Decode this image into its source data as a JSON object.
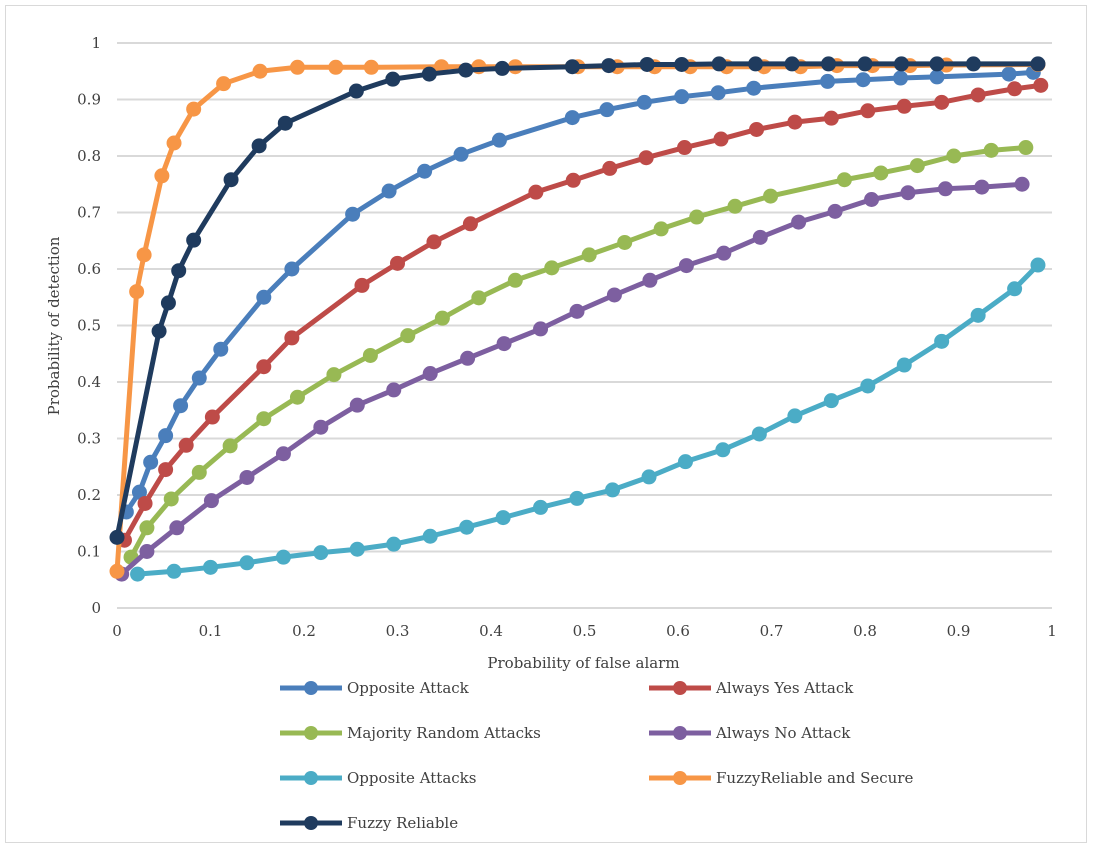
{
  "chart_data": {
    "type": "line",
    "title": "",
    "xlabel": "Probability of false alarm",
    "ylabel": "Probability of detection",
    "xlim": [
      0,
      1
    ],
    "ylim": [
      0,
      1
    ],
    "xticks": [
      0,
      0.1,
      0.2,
      0.3,
      0.4,
      0.5,
      0.6,
      0.7,
      0.8,
      0.9,
      1
    ],
    "xtick_labels": [
      "0",
      "0.1",
      "0.2",
      "0.3",
      "0.4",
      "0.5",
      "0.6",
      "0.7",
      "0.8",
      "0.9",
      "1"
    ],
    "yticks": [
      0,
      0.1,
      0.2,
      0.3,
      0.4,
      0.5,
      0.6,
      0.7,
      0.8,
      0.9,
      1
    ],
    "ytick_labels": [
      "0",
      "0.1",
      "0.2",
      "0.3",
      "0.4",
      "0.5",
      "0.6",
      "0.7",
      "0.8",
      "0.9",
      "1"
    ],
    "grid": "horizontal",
    "legend_position": "bottom",
    "series": [
      {
        "name": "Opposite Attack",
        "color": "#4a7ebb",
        "points": [
          [
            0.01,
            0.17
          ],
          [
            0.024,
            0.205
          ],
          [
            0.036,
            0.258
          ],
          [
            0.052,
            0.305
          ],
          [
            0.068,
            0.358
          ],
          [
            0.088,
            0.407
          ],
          [
            0.111,
            0.458
          ],
          [
            0.157,
            0.55
          ],
          [
            0.187,
            0.6
          ],
          [
            0.252,
            0.697
          ],
          [
            0.291,
            0.738
          ],
          [
            0.329,
            0.773
          ],
          [
            0.368,
            0.803
          ],
          [
            0.409,
            0.828
          ],
          [
            0.487,
            0.868
          ],
          [
            0.524,
            0.882
          ],
          [
            0.564,
            0.895
          ],
          [
            0.604,
            0.905
          ],
          [
            0.643,
            0.912
          ],
          [
            0.681,
            0.92
          ],
          [
            0.76,
            0.932
          ],
          [
            0.798,
            0.935
          ],
          [
            0.838,
            0.938
          ],
          [
            0.877,
            0.94
          ],
          [
            0.954,
            0.945
          ],
          [
            0.98,
            0.948
          ]
        ]
      },
      {
        "name": "Always Yes Attack",
        "color": "#be4b48",
        "points": [
          [
            0.008,
            0.12
          ],
          [
            0.03,
            0.185
          ],
          [
            0.052,
            0.245
          ],
          [
            0.074,
            0.288
          ],
          [
            0.102,
            0.338
          ],
          [
            0.157,
            0.427
          ],
          [
            0.187,
            0.478
          ],
          [
            0.262,
            0.571
          ],
          [
            0.3,
            0.61
          ],
          [
            0.339,
            0.648
          ],
          [
            0.378,
            0.68
          ],
          [
            0.448,
            0.736
          ],
          [
            0.488,
            0.757
          ],
          [
            0.527,
            0.778
          ],
          [
            0.566,
            0.797
          ],
          [
            0.607,
            0.815
          ],
          [
            0.646,
            0.83
          ],
          [
            0.684,
            0.847
          ],
          [
            0.725,
            0.86
          ],
          [
            0.764,
            0.867
          ],
          [
            0.803,
            0.88
          ],
          [
            0.842,
            0.888
          ],
          [
            0.882,
            0.895
          ],
          [
            0.921,
            0.908
          ],
          [
            0.96,
            0.919
          ],
          [
            0.988,
            0.925
          ]
        ]
      },
      {
        "name": "Majority Random Attacks",
        "color": "#98b954",
        "points": [
          [
            0.015,
            0.09
          ],
          [
            0.032,
            0.142
          ],
          [
            0.058,
            0.193
          ],
          [
            0.088,
            0.24
          ],
          [
            0.121,
            0.287
          ],
          [
            0.157,
            0.335
          ],
          [
            0.193,
            0.373
          ],
          [
            0.232,
            0.413
          ],
          [
            0.271,
            0.447
          ],
          [
            0.311,
            0.482
          ],
          [
            0.348,
            0.513
          ],
          [
            0.387,
            0.549
          ],
          [
            0.426,
            0.58
          ],
          [
            0.465,
            0.602
          ],
          [
            0.505,
            0.625
          ],
          [
            0.543,
            0.647
          ],
          [
            0.582,
            0.671
          ],
          [
            0.62,
            0.692
          ],
          [
            0.661,
            0.711
          ],
          [
            0.699,
            0.729
          ],
          [
            0.778,
            0.758
          ],
          [
            0.817,
            0.77
          ],
          [
            0.856,
            0.783
          ],
          [
            0.895,
            0.8
          ],
          [
            0.935,
            0.81
          ],
          [
            0.972,
            0.815
          ]
        ]
      },
      {
        "name": "Always No Attack",
        "color": "#7d5fa0",
        "points": [
          [
            0.005,
            0.06
          ],
          [
            0.032,
            0.1
          ],
          [
            0.064,
            0.142
          ],
          [
            0.101,
            0.19
          ],
          [
            0.139,
            0.231
          ],
          [
            0.178,
            0.273
          ],
          [
            0.218,
            0.32
          ],
          [
            0.257,
            0.359
          ],
          [
            0.296,
            0.386
          ],
          [
            0.335,
            0.415
          ],
          [
            0.375,
            0.442
          ],
          [
            0.414,
            0.468
          ],
          [
            0.453,
            0.494
          ],
          [
            0.492,
            0.525
          ],
          [
            0.532,
            0.554
          ],
          [
            0.57,
            0.58
          ],
          [
            0.609,
            0.606
          ],
          [
            0.649,
            0.628
          ],
          [
            0.688,
            0.656
          ],
          [
            0.729,
            0.683
          ],
          [
            0.768,
            0.702
          ],
          [
            0.807,
            0.723
          ],
          [
            0.846,
            0.735
          ],
          [
            0.886,
            0.742
          ],
          [
            0.925,
            0.745
          ],
          [
            0.968,
            0.75
          ]
        ]
      },
      {
        "name": "Opposite Attacks",
        "color": "#4bacc6",
        "points": [
          [
            0.022,
            0.06
          ],
          [
            0.061,
            0.065
          ],
          [
            0.1,
            0.072
          ],
          [
            0.139,
            0.08
          ],
          [
            0.178,
            0.09
          ],
          [
            0.218,
            0.098
          ],
          [
            0.257,
            0.104
          ],
          [
            0.296,
            0.113
          ],
          [
            0.335,
            0.127
          ],
          [
            0.374,
            0.143
          ],
          [
            0.413,
            0.16
          ],
          [
            0.453,
            0.178
          ],
          [
            0.492,
            0.194
          ],
          [
            0.53,
            0.209
          ],
          [
            0.569,
            0.232
          ],
          [
            0.608,
            0.259
          ],
          [
            0.648,
            0.28
          ],
          [
            0.687,
            0.308
          ],
          [
            0.725,
            0.34
          ],
          [
            0.764,
            0.367
          ],
          [
            0.803,
            0.393
          ],
          [
            0.842,
            0.43
          ],
          [
            0.882,
            0.472
          ],
          [
            0.921,
            0.518
          ],
          [
            0.96,
            0.565
          ],
          [
            0.985,
            0.607
          ]
        ]
      },
      {
        "name": "FuzzyReliable and Secure",
        "color": "#f79646",
        "points": [
          [
            0,
            0.065
          ],
          [
            0.021,
            0.56
          ],
          [
            0.029,
            0.625
          ],
          [
            0.048,
            0.765
          ],
          [
            0.061,
            0.823
          ],
          [
            0.082,
            0.883
          ],
          [
            0.114,
            0.928
          ],
          [
            0.153,
            0.95
          ],
          [
            0.193,
            0.957
          ],
          [
            0.234,
            0.957
          ],
          [
            0.272,
            0.957
          ],
          [
            0.347,
            0.958
          ],
          [
            0.387,
            0.958
          ],
          [
            0.426,
            0.958
          ],
          [
            0.493,
            0.958
          ],
          [
            0.535,
            0.958
          ],
          [
            0.575,
            0.958
          ],
          [
            0.613,
            0.958
          ],
          [
            0.652,
            0.958
          ],
          [
            0.692,
            0.958
          ],
          [
            0.731,
            0.958
          ],
          [
            0.77,
            0.96
          ],
          [
            0.808,
            0.96
          ],
          [
            0.848,
            0.96
          ],
          [
            0.887,
            0.961
          ],
          [
            0.985,
            0.962
          ]
        ]
      },
      {
        "name": "Fuzzy Reliable",
        "color": "#1f3b5e",
        "points": [
          [
            0,
            0.125
          ],
          [
            0.045,
            0.49
          ],
          [
            0.055,
            0.54
          ],
          [
            0.066,
            0.597
          ],
          [
            0.082,
            0.651
          ],
          [
            0.122,
            0.758
          ],
          [
            0.152,
            0.818
          ],
          [
            0.18,
            0.858
          ],
          [
            0.256,
            0.915
          ],
          [
            0.295,
            0.936
          ],
          [
            0.334,
            0.945
          ],
          [
            0.373,
            0.952
          ],
          [
            0.412,
            0.955
          ],
          [
            0.487,
            0.958
          ],
          [
            0.526,
            0.96
          ],
          [
            0.567,
            0.962
          ],
          [
            0.604,
            0.962
          ],
          [
            0.644,
            0.963
          ],
          [
            0.683,
            0.963
          ],
          [
            0.722,
            0.963
          ],
          [
            0.761,
            0.963
          ],
          [
            0.8,
            0.963
          ],
          [
            0.839,
            0.963
          ],
          [
            0.877,
            0.963
          ],
          [
            0.916,
            0.963
          ],
          [
            0.985,
            0.963
          ]
        ]
      }
    ]
  }
}
